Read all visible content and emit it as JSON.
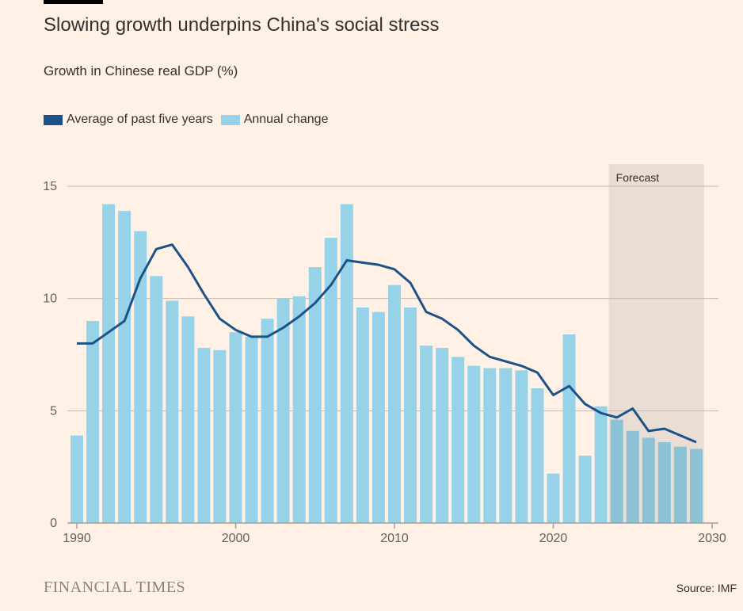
{
  "title": "Slowing growth underpins China's social stress",
  "subtitle": "Growth in Chinese real GDP (%)",
  "legend": [
    {
      "label": "Average of past five years",
      "color": "#1d5289"
    },
    {
      "label": "Annual change",
      "color": "#96d3e8"
    }
  ],
  "footer": {
    "brand": "FINANCIAL TIMES",
    "source": "Source: IMF"
  },
  "chart_data": {
    "type": "bar",
    "title": "Slowing growth underpins China's social stress",
    "ylabel": "Growth in Chinese real GDP (%)",
    "xlim": [
      1990,
      2030
    ],
    "ylim": [
      0,
      15
    ],
    "yticks": [
      0,
      5,
      10,
      15
    ],
    "xticks": [
      1990,
      2000,
      2010,
      2020,
      2030
    ],
    "grid": true,
    "legend_position": "top-left",
    "forecast": {
      "label": "Forecast",
      "from": 2024,
      "to": 2029,
      "color": "#e9ddd4"
    },
    "x": [
      1990,
      1991,
      1992,
      1993,
      1994,
      1995,
      1996,
      1997,
      1998,
      1999,
      2000,
      2001,
      2002,
      2003,
      2004,
      2005,
      2006,
      2007,
      2008,
      2009,
      2010,
      2011,
      2012,
      2013,
      2014,
      2015,
      2016,
      2017,
      2018,
      2019,
      2020,
      2021,
      2022,
      2023,
      2024,
      2025,
      2026,
      2027,
      2028,
      2029
    ],
    "series": [
      {
        "name": "Annual change",
        "type": "bar",
        "color": "#96d3e8",
        "forecast_color": "#8bc2d6",
        "values": [
          3.9,
          9.0,
          14.2,
          13.9,
          13.0,
          11.0,
          9.9,
          9.2,
          7.8,
          7.7,
          8.5,
          8.3,
          9.1,
          10.0,
          10.1,
          11.4,
          12.7,
          14.2,
          9.6,
          9.4,
          10.6,
          9.6,
          7.9,
          7.8,
          7.4,
          7.0,
          6.9,
          6.9,
          6.8,
          6.0,
          2.2,
          8.4,
          3.0,
          5.2,
          4.6,
          4.1,
          3.8,
          3.6,
          3.4,
          3.3
        ]
      },
      {
        "name": "Average of past five years",
        "type": "line",
        "color": "#1d5289",
        "values": [
          8.0,
          8.0,
          8.5,
          9.0,
          10.9,
          12.2,
          12.4,
          11.4,
          10.2,
          9.1,
          8.6,
          8.3,
          8.3,
          8.7,
          9.2,
          9.8,
          10.6,
          11.7,
          11.6,
          11.5,
          11.3,
          10.7,
          9.4,
          9.1,
          8.6,
          7.9,
          7.4,
          7.2,
          7.0,
          6.7,
          5.7,
          6.1,
          5.3,
          4.9,
          4.7,
          5.1,
          4.1,
          4.2,
          3.9,
          3.6
        ]
      }
    ]
  }
}
